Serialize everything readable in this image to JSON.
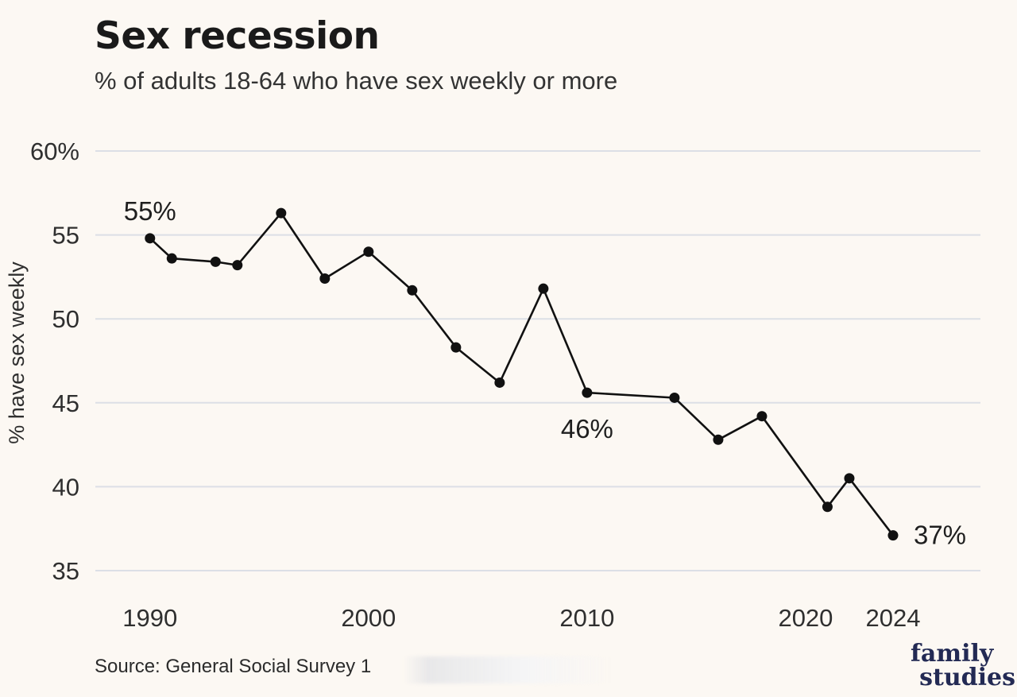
{
  "header": {
    "title": "Sex recession",
    "subtitle": "% of adults 18-64 who have sex weekly or more"
  },
  "footer": {
    "source": "Source: General Social Survey 1",
    "logo_line1": "family",
    "logo_line2": "studies"
  },
  "chart_data": {
    "type": "line",
    "title": "Sex recession",
    "subtitle": "% of adults 18-64 who have sex weekly or more",
    "xlabel": "",
    "ylabel": "% have sex weekly",
    "xlim": [
      1987.5,
      2028
    ],
    "ylim": [
      35,
      60
    ],
    "grid": true,
    "x_ticks": [
      1990,
      2000,
      2010,
      2020,
      2024
    ],
    "x_tick_labels": [
      "1990",
      "2000",
      "2010",
      "2020",
      "2024"
    ],
    "y_ticks": [
      35,
      40,
      45,
      50,
      55,
      60
    ],
    "y_tick_labels": [
      "35",
      "40",
      "45",
      "50",
      "55",
      "60%"
    ],
    "series": [
      {
        "color": "#111111",
        "x": [
          1990,
          1991,
          1993,
          1994,
          1996,
          1998,
          2000,
          2002,
          2004,
          2006,
          2008,
          2010,
          2014,
          2016,
          2018,
          2021,
          2022,
          2024
        ],
        "y": [
          54.8,
          53.6,
          53.4,
          53.2,
          56.3,
          52.4,
          54.0,
          51.7,
          48.3,
          46.2,
          51.8,
          45.6,
          45.3,
          42.8,
          44.2,
          38.8,
          40.5,
          37.1
        ]
      }
    ],
    "annotations": [
      {
        "text": "55%",
        "x": 1990,
        "y": 54.8
      },
      {
        "text": "46%",
        "x": 2010,
        "y": 45.6
      },
      {
        "text": "37%",
        "x": 2024,
        "y": 37.1
      }
    ]
  }
}
